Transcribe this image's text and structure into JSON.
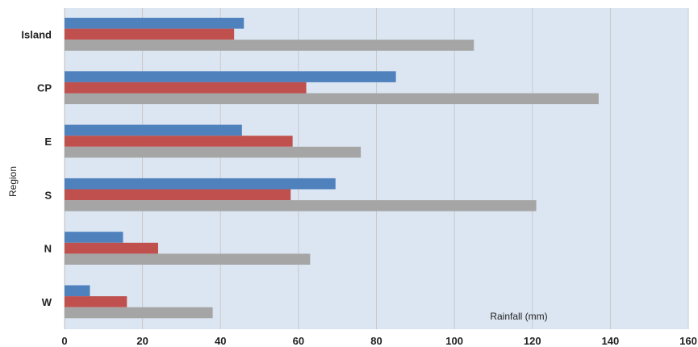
{
  "chart_data": {
    "type": "bar",
    "orientation": "horizontal",
    "categories": [
      "Island",
      "CP",
      "E",
      "S",
      "N",
      "W"
    ],
    "series": [
      {
        "color": "#4f81bd",
        "values": [
          46,
          85,
          45.5,
          69.5,
          15,
          6.5
        ]
      },
      {
        "color": "#c0504d",
        "values": [
          43.5,
          62,
          58.5,
          58,
          24,
          16
        ]
      },
      {
        "color": "#a5a5a5",
        "values": [
          105,
          137,
          76,
          121,
          63,
          38
        ]
      }
    ],
    "title": "",
    "xlabel": "Rainfall (mm)",
    "ylabel": "Region",
    "xlim": [
      0,
      160
    ],
    "xticks": [
      "0",
      "20",
      "40",
      "60",
      "80",
      "100",
      "120",
      "140",
      "160"
    ],
    "grid": true,
    "plot_background": "#dce6f2"
  }
}
